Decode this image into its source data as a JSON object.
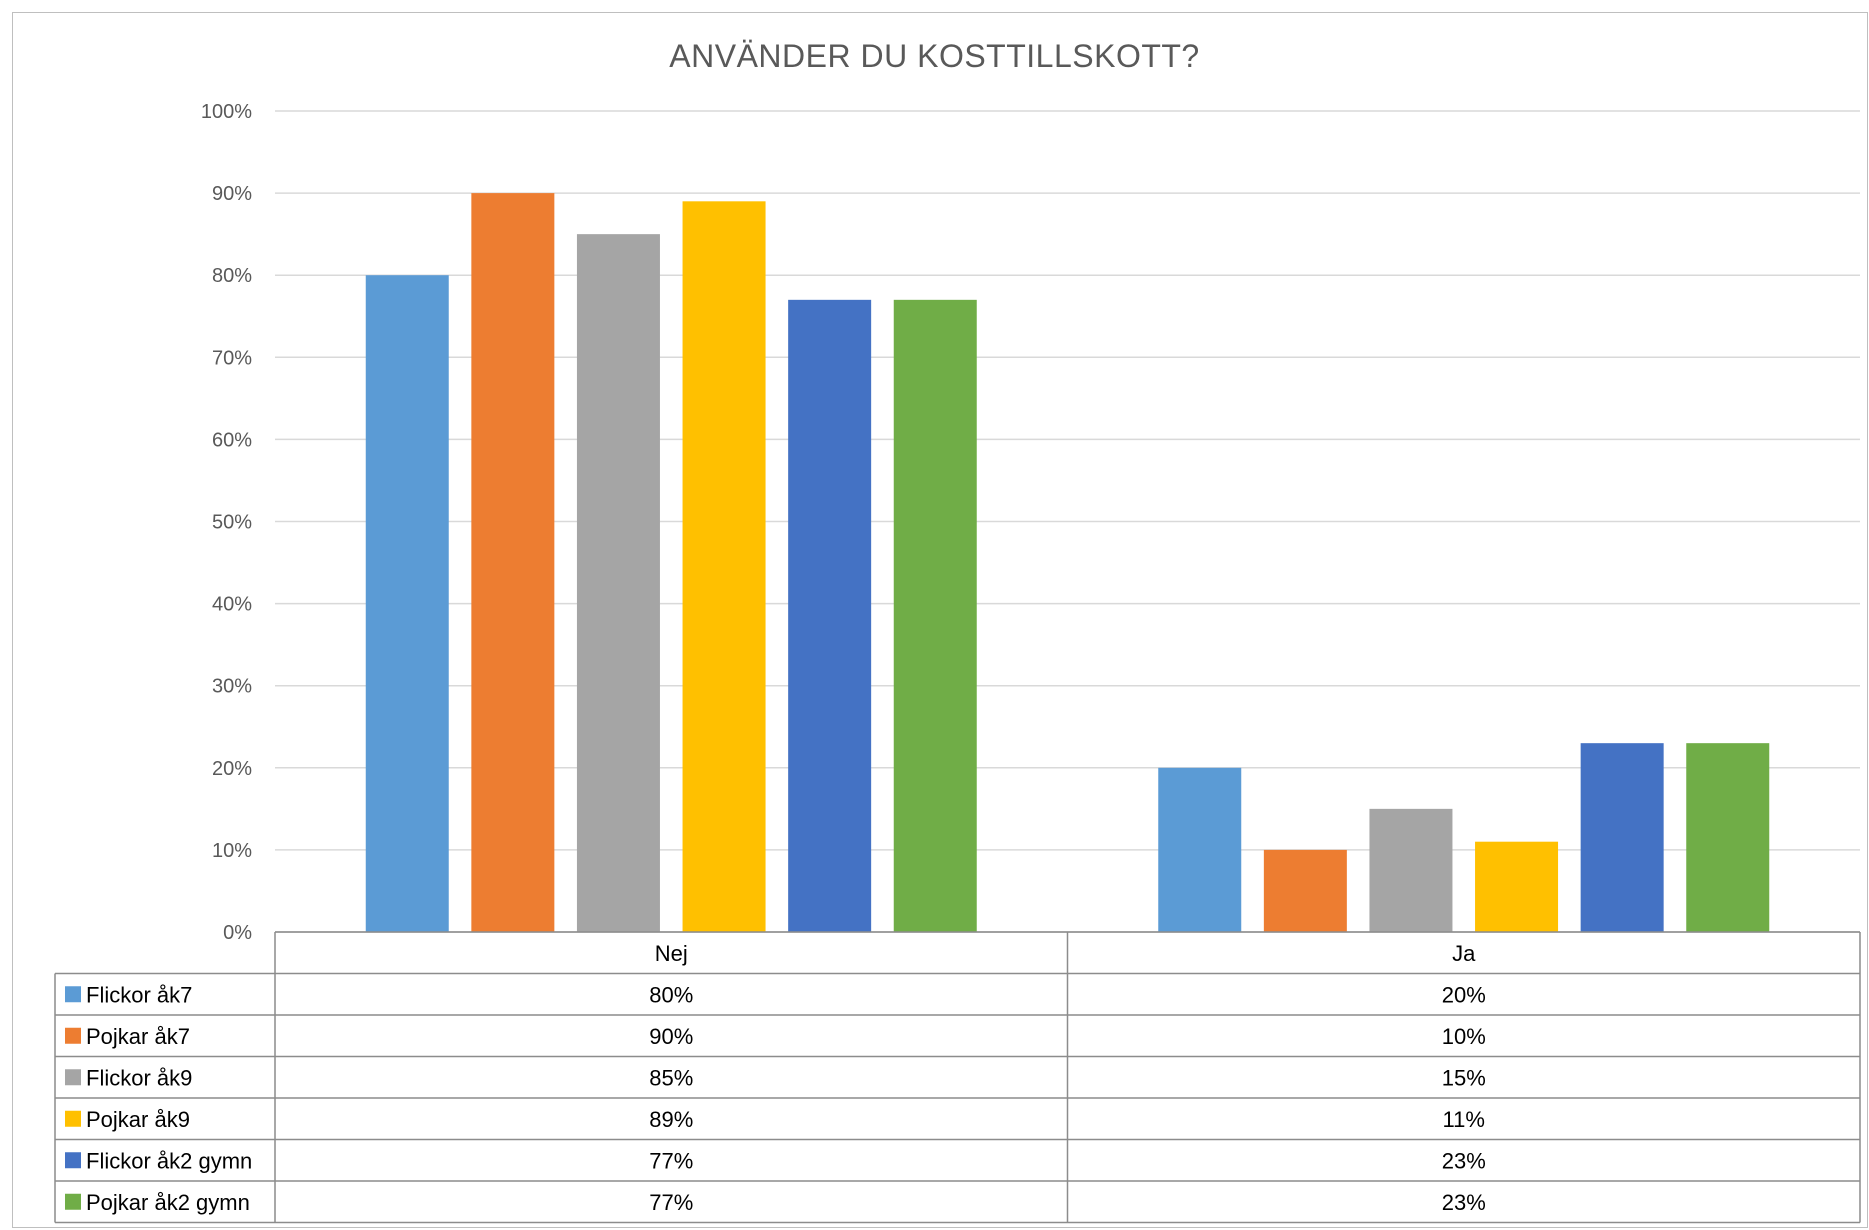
{
  "chart_data": {
    "type": "bar",
    "title": "ANVÄNDER DU KOSTTILLSKOTT?",
    "categories": [
      "Nej",
      "Ja"
    ],
    "series": [
      {
        "name": "Flickor åk7",
        "values": [
          80,
          20
        ],
        "labels": [
          "80%",
          "20%"
        ],
        "color": "#5b9bd5"
      },
      {
        "name": "Pojkar åk7",
        "values": [
          90,
          10
        ],
        "labels": [
          "90%",
          "10%"
        ],
        "color": "#ed7d31"
      },
      {
        "name": "Flickor åk9",
        "values": [
          85,
          15
        ],
        "labels": [
          "85%",
          "15%"
        ],
        "color": "#a5a5a5"
      },
      {
        "name": "Pojkar åk9",
        "values": [
          89,
          11
        ],
        "labels": [
          "89%",
          "11%"
        ],
        "color": "#ffc000"
      },
      {
        "name": "Flickor åk2 gymn",
        "values": [
          77,
          23
        ],
        "labels": [
          "77%",
          "23%"
        ],
        "color": "#4472c4"
      },
      {
        "name": "Pojkar åk2 gymn",
        "values": [
          77,
          23
        ],
        "labels": [
          "77%",
          "23%"
        ],
        "color": "#70ad47"
      }
    ],
    "ylim": [
      0,
      100
    ],
    "yticks": [
      "0%",
      "10%",
      "20%",
      "30%",
      "40%",
      "50%",
      "60%",
      "70%",
      "80%",
      "90%",
      "100%"
    ],
    "grid": true,
    "legend": "data-table"
  }
}
